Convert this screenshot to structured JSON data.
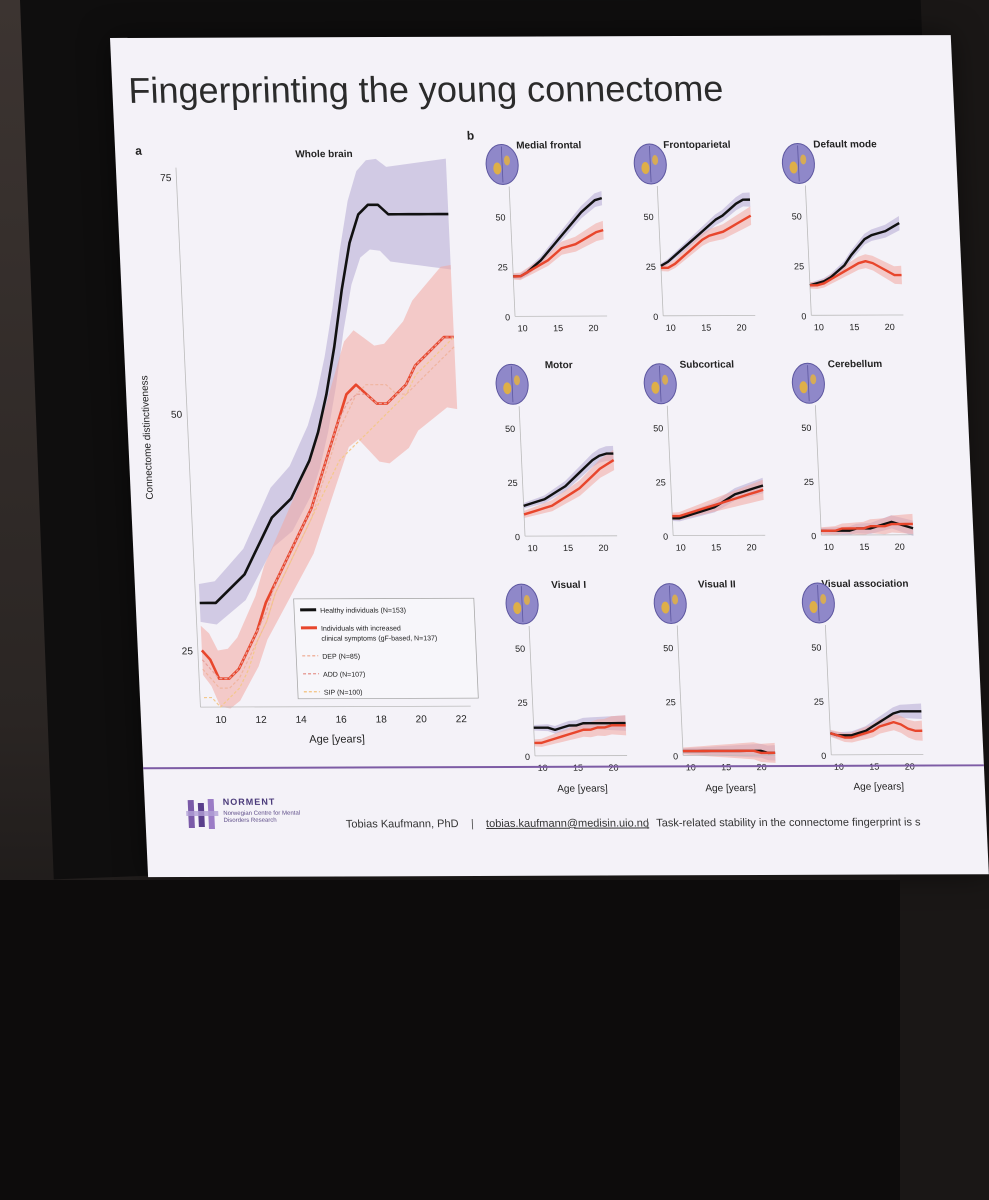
{
  "slide": {
    "title": "Fingerprinting the young connectome",
    "label_a": "a",
    "label_b": "b"
  },
  "footer": {
    "org": "NORMENT",
    "org_sub": "Norwegian Centre for Mental Disorders Research",
    "author": "Tobias Kaufmann, PhD",
    "email": "tobias.kaufmann@medisin.uio.no",
    "note": "Task-related stability in the connectome fingerprint is s",
    "separator": "|"
  },
  "colors": {
    "healthy": "#111111",
    "clinical": "#e8462c",
    "healthy_band": "#b4a9d4",
    "clinical_band": "#f3a7a0",
    "dep": "#f0b5a0",
    "add": "#e7a09a",
    "sip": "#f3c88c"
  },
  "chart_data": [
    {
      "type": "line",
      "title": "Whole brain",
      "xlabel": "Age [years]",
      "ylabel": "Connectome distinctiveness",
      "xlim": [
        9,
        22.5
      ],
      "ylim": [
        19,
        76
      ],
      "xticks": [
        "10",
        "12",
        "14",
        "16",
        "18",
        "20",
        "22"
      ],
      "yticks": [
        "25",
        "50",
        "75"
      ],
      "x": [
        9.2,
        9.6,
        10,
        10.5,
        11,
        11.5,
        12,
        12.5,
        13,
        13.5,
        14,
        14.5,
        15,
        15.5,
        16,
        16.5,
        17,
        17.5,
        18,
        18.5,
        19,
        19.5,
        20,
        20.5,
        21,
        21.5,
        22,
        22.5
      ],
      "series": [
        {
          "name": "Healthy individuals (N=153)",
          "values": [
            30,
            30,
            30,
            31,
            32,
            33,
            35,
            37,
            39,
            40,
            41,
            43,
            45,
            48,
            52,
            57,
            63,
            68,
            71,
            72,
            72,
            71,
            71,
            71,
            71,
            71,
            71,
            71
          ]
        },
        {
          "name": "Individuals with increased clinical symptoms (gF-based, N=137)",
          "values": [
            25,
            24,
            22,
            22,
            23,
            25,
            27,
            30,
            32,
            34,
            36,
            38,
            40,
            43,
            46,
            49,
            52,
            53,
            52,
            51,
            51,
            52,
            53,
            55,
            56,
            57,
            58,
            58
          ]
        },
        {
          "name": "DEP (N=85)",
          "values": [
            23,
            22,
            21,
            21,
            22,
            24,
            26,
            28,
            31,
            33,
            35,
            37,
            39,
            42,
            45,
            48,
            50,
            52,
            53,
            53,
            53,
            52,
            52,
            53,
            54,
            55,
            56,
            57
          ]
        },
        {
          "name": "ADD (N=107)",
          "values": [
            24,
            23,
            22,
            22,
            23,
            25,
            27,
            29,
            32,
            34,
            36,
            38,
            40,
            43,
            46,
            49,
            51,
            52,
            52,
            51,
            51,
            52,
            53,
            55,
            56,
            57,
            58,
            58
          ]
        },
        {
          "name": "SIP (N=100)",
          "values": [
            20,
            20,
            19,
            20,
            21,
            23,
            26,
            28,
            31,
            33,
            35,
            37,
            39,
            41,
            43,
            45,
            46,
            47,
            48,
            49,
            50,
            51,
            52,
            54,
            55,
            56,
            57,
            58
          ]
        }
      ],
      "legend": "bottom-right"
    },
    {
      "type": "line",
      "title": "Medial frontal",
      "xlim": [
        9,
        22
      ],
      "ylim": [
        0,
        65
      ],
      "yticks": [
        "0",
        "25",
        "50"
      ],
      "xticks": [
        "10",
        "15",
        "20"
      ],
      "x": [
        9,
        10,
        11,
        12,
        13,
        14,
        15,
        16,
        17,
        18,
        19,
        20,
        21,
        22
      ],
      "series": [
        {
          "values": [
            20,
            20,
            22,
            25,
            28,
            32,
            36,
            40,
            44,
            48,
            52,
            55,
            58,
            59
          ]
        },
        {
          "values": [
            20,
            20,
            22,
            24,
            26,
            28,
            31,
            34,
            35,
            36,
            38,
            40,
            42,
            43
          ]
        }
      ]
    },
    {
      "type": "line",
      "title": "Frontoparietal",
      "xlim": [
        9,
        22
      ],
      "ylim": [
        0,
        65
      ],
      "yticks": [
        "0",
        "25",
        "50"
      ],
      "xticks": [
        "10",
        "15",
        "20"
      ],
      "x": [
        9,
        10,
        11,
        12,
        13,
        14,
        15,
        16,
        17,
        18,
        19,
        20,
        21,
        22
      ],
      "series": [
        {
          "values": [
            25,
            27,
            30,
            33,
            36,
            39,
            42,
            45,
            48,
            50,
            53,
            56,
            58,
            58
          ]
        },
        {
          "values": [
            24,
            24,
            26,
            29,
            32,
            35,
            38,
            40,
            41,
            42,
            44,
            46,
            48,
            50
          ]
        }
      ]
    },
    {
      "type": "line",
      "title": "Default mode",
      "xlim": [
        9,
        22
      ],
      "ylim": [
        0,
        65
      ],
      "yticks": [
        "0",
        "25",
        "50"
      ],
      "xticks": [
        "10",
        "15",
        "20"
      ],
      "x": [
        9,
        10,
        11,
        12,
        13,
        14,
        15,
        16,
        17,
        18,
        19,
        20,
        21,
        22
      ],
      "series": [
        {
          "values": [
            15,
            16,
            17,
            19,
            22,
            25,
            30,
            34,
            38,
            40,
            41,
            42,
            44,
            46
          ]
        },
        {
          "values": [
            15,
            15,
            16,
            18,
            20,
            22,
            24,
            26,
            27,
            26,
            24,
            22,
            20,
            20
          ]
        }
      ]
    },
    {
      "type": "line",
      "title": "Motor",
      "xlim": [
        9,
        22
      ],
      "ylim": [
        0,
        60
      ],
      "yticks": [
        "0",
        "25",
        "50"
      ],
      "xticks": [
        "10",
        "15",
        "20"
      ],
      "x": [
        9,
        10,
        11,
        12,
        13,
        14,
        15,
        16,
        17,
        18,
        19,
        20,
        21,
        22
      ],
      "series": [
        {
          "values": [
            14,
            15,
            16,
            17,
            19,
            21,
            23,
            26,
            29,
            32,
            35,
            37,
            38,
            38
          ]
        },
        {
          "values": [
            10,
            11,
            12,
            13,
            14,
            16,
            18,
            20,
            22,
            25,
            28,
            31,
            33,
            35
          ]
        }
      ]
    },
    {
      "type": "line",
      "title": "Subcortical",
      "xlim": [
        9,
        22
      ],
      "ylim": [
        0,
        60
      ],
      "yticks": [
        "0",
        "25",
        "50"
      ],
      "xticks": [
        "10",
        "15",
        "20"
      ],
      "x": [
        9,
        10,
        11,
        12,
        13,
        14,
        15,
        16,
        17,
        18,
        19,
        20,
        21,
        22
      ],
      "series": [
        {
          "values": [
            8,
            8,
            9,
            10,
            11,
            12,
            13,
            15,
            17,
            19,
            20,
            21,
            22,
            23
          ]
        },
        {
          "values": [
            9,
            9,
            10,
            11,
            12,
            13,
            14,
            15,
            16,
            17,
            18,
            19,
            20,
            21
          ]
        }
      ]
    },
    {
      "type": "line",
      "title": "Cerebellum",
      "xlim": [
        9,
        22
      ],
      "ylim": [
        0,
        60
      ],
      "yticks": [
        "0",
        "25",
        "50"
      ],
      "xticks": [
        "10",
        "15",
        "20"
      ],
      "x": [
        9,
        10,
        11,
        12,
        13,
        14,
        15,
        16,
        17,
        18,
        19,
        20,
        21,
        22
      ],
      "series": [
        {
          "values": [
            2,
            2,
            2,
            2,
            2,
            3,
            3,
            3,
            4,
            5,
            6,
            5,
            4,
            3
          ]
        },
        {
          "values": [
            2,
            2,
            2,
            3,
            3,
            3,
            3,
            4,
            4,
            4,
            5,
            5,
            5,
            5
          ]
        }
      ]
    },
    {
      "type": "line",
      "title": "Visual I",
      "xlim": [
        9,
        22
      ],
      "ylim": [
        0,
        60
      ],
      "yticks": [
        "0",
        "25",
        "50"
      ],
      "xticks": [
        "10",
        "15",
        "20"
      ],
      "x": [
        9,
        10,
        11,
        12,
        13,
        14,
        15,
        16,
        17,
        18,
        19,
        20,
        21,
        22
      ],
      "series": [
        {
          "values": [
            13,
            13,
            13,
            12,
            13,
            14,
            14,
            15,
            15,
            15,
            15,
            15,
            15,
            15
          ]
        },
        {
          "values": [
            6,
            6,
            7,
            8,
            9,
            10,
            11,
            12,
            12,
            13,
            13,
            14,
            14,
            14
          ]
        }
      ]
    },
    {
      "type": "line",
      "title": "Visual II",
      "xlim": [
        9,
        22
      ],
      "ylim": [
        0,
        60
      ],
      "yticks": [
        "0",
        "25",
        "50"
      ],
      "xticks": [
        "10",
        "15",
        "20"
      ],
      "x": [
        9,
        10,
        11,
        12,
        13,
        14,
        15,
        16,
        17,
        18,
        19,
        20,
        21,
        22
      ],
      "series": [
        {
          "values": [
            2,
            2,
            2,
            2,
            2,
            2,
            2,
            2,
            2,
            2,
            2,
            2,
            1,
            1
          ]
        },
        {
          "values": [
            2,
            2,
            2,
            2,
            2,
            2,
            2,
            2,
            2,
            2,
            2,
            1,
            1,
            1
          ]
        }
      ]
    },
    {
      "type": "line",
      "title": "Visual association",
      "xlim": [
        9,
        22
      ],
      "ylim": [
        0,
        60
      ],
      "yticks": [
        "0",
        "25",
        "50"
      ],
      "xticks": [
        "10",
        "15",
        "20"
      ],
      "xlabel": "Age [years]",
      "x": [
        9,
        10,
        11,
        12,
        13,
        14,
        15,
        16,
        17,
        18,
        19,
        20,
        21,
        22
      ],
      "series": [
        {
          "values": [
            10,
            9,
            9,
            9,
            10,
            11,
            13,
            15,
            17,
            19,
            20,
            20,
            20,
            20
          ]
        },
        {
          "values": [
            10,
            9,
            8,
            8,
            9,
            10,
            11,
            13,
            14,
            15,
            14,
            12,
            11,
            11
          ]
        }
      ]
    }
  ],
  "small_xlabel": "Age [years]"
}
